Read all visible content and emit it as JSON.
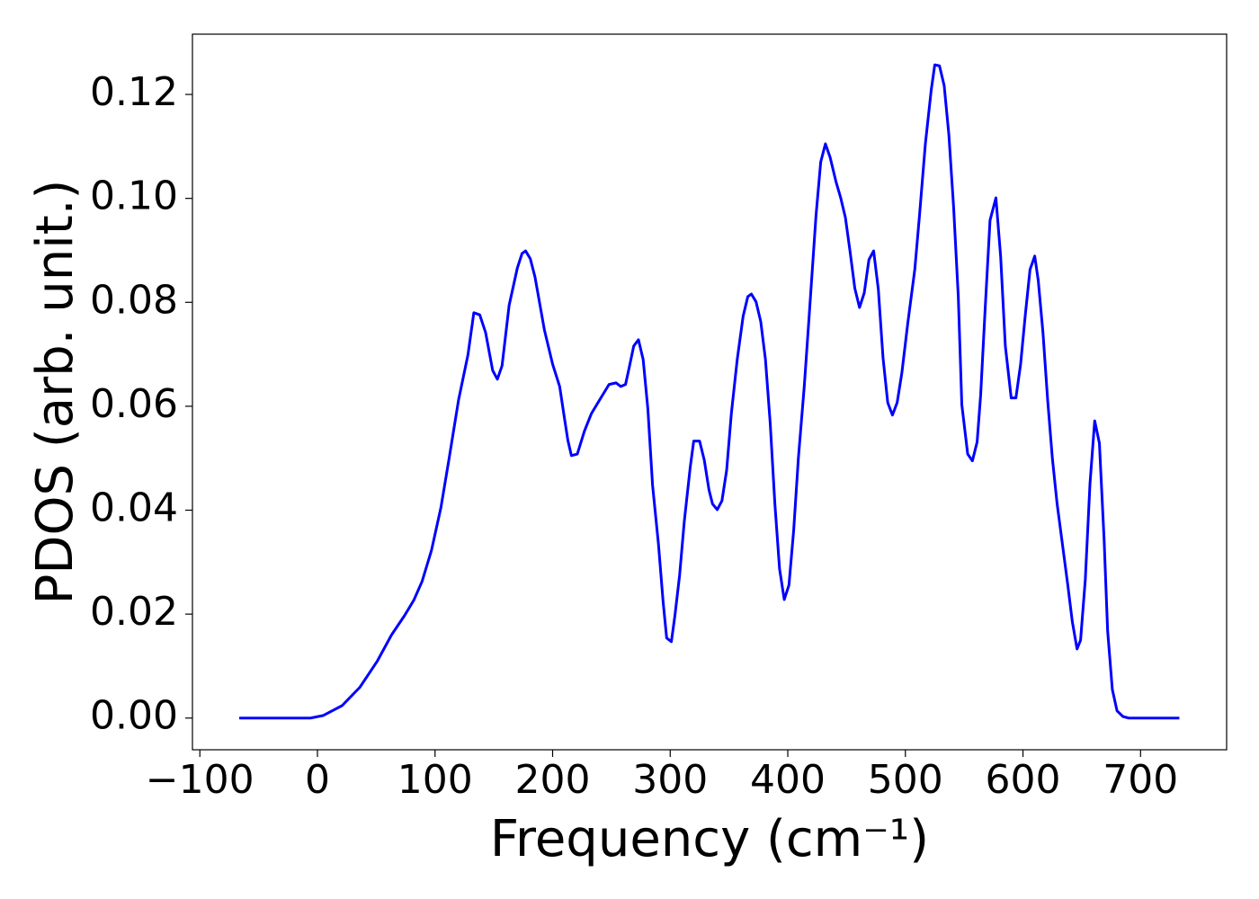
{
  "chart_data": {
    "type": "line",
    "xlabel": "Frequency (cm⁻¹)",
    "ylabel": "PDOS (arb. unit.)",
    "color": "#0000ff",
    "xlim": [
      -106.3,
      773.2
    ],
    "ylim": [
      -0.0061,
      0.1316
    ],
    "xticks": [
      {
        "value": -100,
        "label": "−100"
      },
      0,
      100,
      200,
      300,
      400,
      500,
      600,
      700
    ],
    "yticks": [
      {
        "value": 0,
        "label": "0.00"
      },
      0.02,
      0.04,
      0.06,
      0.08,
      {
        "value": 0.1,
        "label": "0.10"
      },
      0.12
    ],
    "x": [
      -66.5,
      -6,
      5,
      21,
      36,
      51,
      63,
      74,
      82,
      89,
      97,
      105,
      112,
      120,
      128,
      133,
      138,
      143,
      149,
      153,
      157,
      163,
      170,
      174,
      177,
      181,
      185,
      193,
      200,
      206,
      210,
      213,
      216,
      221,
      227,
      233,
      241,
      248,
      254,
      258,
      262,
      265,
      269,
      273,
      277,
      281,
      285,
      290,
      294,
      297,
      301,
      304,
      308,
      312,
      317,
      320,
      325,
      329,
      333,
      336,
      340,
      344,
      348,
      352,
      357,
      362,
      366,
      369,
      373,
      377,
      381,
      385,
      389,
      393,
      397,
      401,
      405,
      409,
      414,
      418,
      424,
      428,
      432,
      436,
      441,
      445,
      449,
      453,
      457,
      461,
      465,
      469,
      473,
      477,
      481,
      485,
      489,
      493,
      497,
      502,
      508,
      512,
      517,
      522,
      525,
      529,
      533,
      537,
      541,
      545,
      548,
      553,
      557,
      561,
      564,
      568,
      572,
      577,
      581,
      585,
      590,
      594,
      598,
      602,
      606,
      610,
      613,
      617,
      621,
      625,
      629,
      634,
      638,
      642,
      646,
      649,
      653,
      657,
      661,
      665,
      669,
      672,
      676,
      680,
      685,
      690,
      733
    ],
    "values": [
      0,
      0,
      0.0005,
      0.0024,
      0.0059,
      0.011,
      0.016,
      0.0197,
      0.0227,
      0.0263,
      0.0323,
      0.0405,
      0.05,
      0.0612,
      0.0699,
      0.078,
      0.0776,
      0.0742,
      0.0669,
      0.0652,
      0.0678,
      0.0794,
      0.0866,
      0.0894,
      0.0899,
      0.0884,
      0.0849,
      0.0747,
      0.0681,
      0.0638,
      0.0578,
      0.0534,
      0.0505,
      0.0508,
      0.0552,
      0.0586,
      0.0616,
      0.0642,
      0.0645,
      0.0638,
      0.0642,
      0.0673,
      0.0716,
      0.0728,
      0.069,
      0.0595,
      0.0448,
      0.0335,
      0.0223,
      0.0154,
      0.0147,
      0.0197,
      0.0275,
      0.0379,
      0.0482,
      0.0533,
      0.0533,
      0.0496,
      0.0439,
      0.0412,
      0.0401,
      0.0418,
      0.0477,
      0.0586,
      0.069,
      0.0773,
      0.0811,
      0.0816,
      0.0801,
      0.0763,
      0.069,
      0.0569,
      0.0413,
      0.0287,
      0.0228,
      0.0256,
      0.0361,
      0.05,
      0.0638,
      0.0768,
      0.0967,
      0.107,
      0.1105,
      0.1079,
      0.1032,
      0.1001,
      0.0963,
      0.0897,
      0.0827,
      0.079,
      0.0818,
      0.0882,
      0.0899,
      0.0825,
      0.0693,
      0.0607,
      0.0583,
      0.0607,
      0.0664,
      0.0759,
      0.0863,
      0.0967,
      0.1105,
      0.1209,
      0.1257,
      0.1255,
      0.1217,
      0.1122,
      0.0984,
      0.0811,
      0.0603,
      0.0508,
      0.0495,
      0.0531,
      0.0621,
      0.0794,
      0.0958,
      0.1001,
      0.0889,
      0.0716,
      0.0616,
      0.0616,
      0.0681,
      0.0776,
      0.0863,
      0.0889,
      0.0842,
      0.0742,
      0.0612,
      0.05,
      0.0413,
      0.0327,
      0.0258,
      0.0185,
      0.0133,
      0.015,
      0.0266,
      0.0451,
      0.0572,
      0.0529,
      0.0344,
      0.0168,
      0.0055,
      0.0014,
      0.0003,
      0,
      0
    ]
  }
}
